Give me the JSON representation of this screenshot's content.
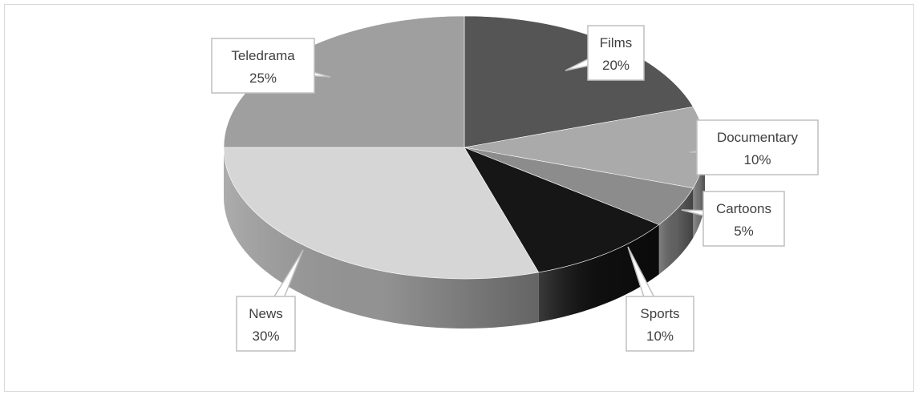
{
  "chart_data": {
    "type": "pie",
    "style": "3d",
    "grayscale": true,
    "slices": [
      {
        "name": "Films",
        "value": 20,
        "label": "20%",
        "color": "#555555"
      },
      {
        "name": "Documentary",
        "value": 10,
        "label": "10%",
        "color": "#aaaaaa"
      },
      {
        "name": "Cartoons",
        "value": 5,
        "label": "5%",
        "color": "#8c8c8c"
      },
      {
        "name": "Sports",
        "value": 10,
        "label": "10%",
        "color": "#161616"
      },
      {
        "name": "News",
        "value": 30,
        "label": "30%",
        "color": "#d6d6d6"
      },
      {
        "name": "Teledrama",
        "value": 25,
        "label": "25%",
        "color": "#9f9f9f"
      }
    ],
    "legend": "none",
    "data_labels": "callouts"
  }
}
